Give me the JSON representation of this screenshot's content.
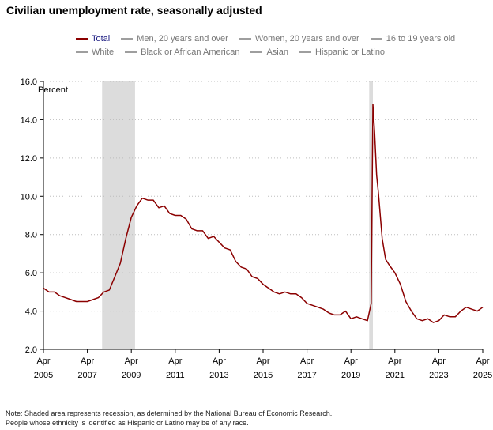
{
  "chart_data": {
    "type": "line",
    "title": "Civilian unemployment rate, seasonally adjusted",
    "ylabel": "Percent",
    "ylim": [
      2.0,
      16.0
    ],
    "yticks": [
      "2.0",
      "4.0",
      "6.0",
      "8.0",
      "10.0",
      "12.0",
      "14.0",
      "16.0"
    ],
    "xticks": [
      {
        "month": "Apr",
        "year": "2005",
        "t": 2005.25
      },
      {
        "month": "Apr",
        "year": "2007",
        "t": 2007.25
      },
      {
        "month": "Apr",
        "year": "2009",
        "t": 2009.25
      },
      {
        "month": "Apr",
        "year": "2011",
        "t": 2011.25
      },
      {
        "month": "Apr",
        "year": "2013",
        "t": 2013.25
      },
      {
        "month": "Apr",
        "year": "2015",
        "t": 2015.25
      },
      {
        "month": "Apr",
        "year": "2017",
        "t": 2017.25
      },
      {
        "month": "Apr",
        "year": "2019",
        "t": 2019.25
      },
      {
        "month": "Apr",
        "year": "2021",
        "t": 2021.25
      },
      {
        "month": "Apr",
        "year": "2023",
        "t": 2023.25
      },
      {
        "month": "Apr",
        "year": "2025",
        "t": 2025.25
      }
    ],
    "xlim": [
      2005.25,
      2025.25
    ],
    "recessions": [
      [
        2007.92,
        2009.42
      ],
      [
        2020.08,
        2020.25
      ]
    ],
    "legend": [
      {
        "label": "Total",
        "color": "#8b0000",
        "active": true
      },
      {
        "label": "Men, 20 years and over",
        "color": "#9e9e9e",
        "active": false
      },
      {
        "label": "Women, 20 years and over",
        "color": "#9e9e9e",
        "active": false
      },
      {
        "label": "16 to 19 years old",
        "color": "#9e9e9e",
        "active": false
      },
      {
        "label": "White",
        "color": "#9e9e9e",
        "active": false
      },
      {
        "label": "Black or African American",
        "color": "#9e9e9e",
        "active": false
      },
      {
        "label": "Asian",
        "color": "#9e9e9e",
        "active": false
      },
      {
        "label": "Hispanic or Latino",
        "color": "#9e9e9e",
        "active": false
      }
    ],
    "series": [
      {
        "name": "Total",
        "color": "#8b0000",
        "points": [
          [
            2005.25,
            5.2
          ],
          [
            2005.5,
            5.0
          ],
          [
            2005.75,
            5.0
          ],
          [
            2006.0,
            4.8
          ],
          [
            2006.25,
            4.7
          ],
          [
            2006.5,
            4.6
          ],
          [
            2006.75,
            4.5
          ],
          [
            2007.0,
            4.5
          ],
          [
            2007.25,
            4.5
          ],
          [
            2007.5,
            4.6
          ],
          [
            2007.75,
            4.7
          ],
          [
            2008.0,
            5.0
          ],
          [
            2008.25,
            5.1
          ],
          [
            2008.5,
            5.8
          ],
          [
            2008.75,
            6.5
          ],
          [
            2009.0,
            7.8
          ],
          [
            2009.25,
            8.9
          ],
          [
            2009.5,
            9.5
          ],
          [
            2009.75,
            9.9
          ],
          [
            2010.0,
            9.8
          ],
          [
            2010.25,
            9.8
          ],
          [
            2010.5,
            9.4
          ],
          [
            2010.75,
            9.5
          ],
          [
            2011.0,
            9.1
          ],
          [
            2011.25,
            9.0
          ],
          [
            2011.5,
            9.0
          ],
          [
            2011.75,
            8.8
          ],
          [
            2012.0,
            8.3
          ],
          [
            2012.25,
            8.2
          ],
          [
            2012.5,
            8.2
          ],
          [
            2012.75,
            7.8
          ],
          [
            2013.0,
            7.9
          ],
          [
            2013.25,
            7.6
          ],
          [
            2013.5,
            7.3
          ],
          [
            2013.75,
            7.2
          ],
          [
            2014.0,
            6.6
          ],
          [
            2014.25,
            6.3
          ],
          [
            2014.5,
            6.2
          ],
          [
            2014.75,
            5.8
          ],
          [
            2015.0,
            5.7
          ],
          [
            2015.25,
            5.4
          ],
          [
            2015.5,
            5.2
          ],
          [
            2015.75,
            5.0
          ],
          [
            2016.0,
            4.9
          ],
          [
            2016.25,
            5.0
          ],
          [
            2016.5,
            4.9
          ],
          [
            2016.75,
            4.9
          ],
          [
            2017.0,
            4.7
          ],
          [
            2017.25,
            4.4
          ],
          [
            2017.5,
            4.3
          ],
          [
            2017.75,
            4.2
          ],
          [
            2018.0,
            4.1
          ],
          [
            2018.25,
            3.9
          ],
          [
            2018.5,
            3.8
          ],
          [
            2018.75,
            3.8
          ],
          [
            2019.0,
            4.0
          ],
          [
            2019.25,
            3.6
          ],
          [
            2019.5,
            3.7
          ],
          [
            2019.75,
            3.6
          ],
          [
            2020.0,
            3.5
          ],
          [
            2020.17,
            4.4
          ],
          [
            2020.25,
            14.8
          ],
          [
            2020.33,
            13.3
          ],
          [
            2020.42,
            11.1
          ],
          [
            2020.5,
            10.2
          ],
          [
            2020.67,
            7.8
          ],
          [
            2020.83,
            6.7
          ],
          [
            2021.0,
            6.4
          ],
          [
            2021.25,
            6.0
          ],
          [
            2021.5,
            5.4
          ],
          [
            2021.75,
            4.5
          ],
          [
            2022.0,
            4.0
          ],
          [
            2022.25,
            3.6
          ],
          [
            2022.5,
            3.5
          ],
          [
            2022.75,
            3.6
          ],
          [
            2023.0,
            3.4
          ],
          [
            2023.25,
            3.5
          ],
          [
            2023.5,
            3.8
          ],
          [
            2023.75,
            3.7
          ],
          [
            2024.0,
            3.7
          ],
          [
            2024.25,
            4.0
          ],
          [
            2024.5,
            4.2
          ],
          [
            2024.75,
            4.1
          ],
          [
            2025.0,
            4.0
          ],
          [
            2025.25,
            4.2
          ]
        ]
      }
    ]
  },
  "notes": [
    "Note: Shaded area represents recession, as determined by the National Bureau of Economic Research.",
    "People whose ethnicity is identified as Hispanic or Latino may be of any race."
  ]
}
